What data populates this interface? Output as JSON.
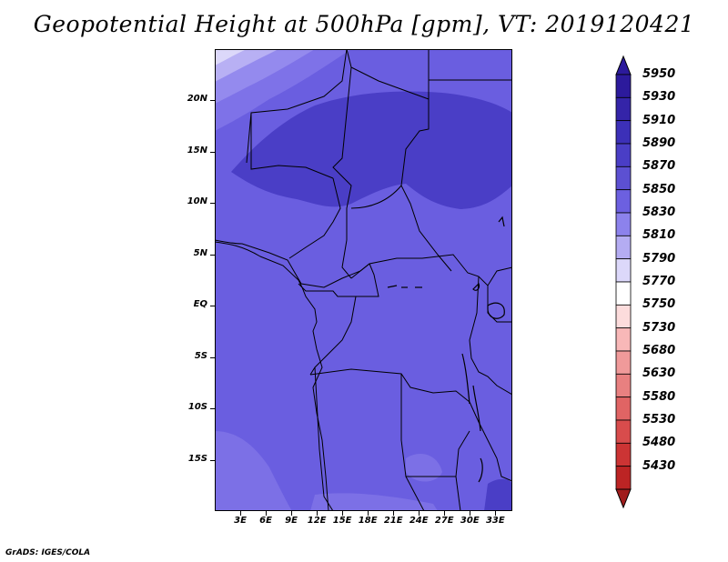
{
  "title": "Geopotential Height at 500hPa [gpm], VT: 2019120421",
  "credit": "GrADS: IGES/COLA",
  "map": {
    "lat_range": [
      -20,
      25
    ],
    "lon_range": [
      0,
      35
    ],
    "lat_ticks": [
      {
        "value": 20,
        "label": "20N"
      },
      {
        "value": 15,
        "label": "15N"
      },
      {
        "value": 10,
        "label": "10N"
      },
      {
        "value": 5,
        "label": "5N"
      },
      {
        "value": 0,
        "label": "EQ"
      },
      {
        "value": -5,
        "label": "5S"
      },
      {
        "value": -10,
        "label": "10S"
      },
      {
        "value": -15,
        "label": "15S"
      }
    ],
    "lon_ticks": [
      {
        "value": 3,
        "label": "3E"
      },
      {
        "value": 6,
        "label": "6E"
      },
      {
        "value": 9,
        "label": "9E"
      },
      {
        "value": 12,
        "label": "12E"
      },
      {
        "value": 15,
        "label": "15E"
      },
      {
        "value": 18,
        "label": "18E"
      },
      {
        "value": 21,
        "label": "21E"
      },
      {
        "value": 24,
        "label": "24E"
      },
      {
        "value": 27,
        "label": "27E"
      },
      {
        "value": 30,
        "label": "30E"
      },
      {
        "value": 33,
        "label": "33E"
      }
    ]
  },
  "colorbar": {
    "levels": [
      {
        "label": "5950",
        "color": "#2c1a9c"
      },
      {
        "label": "5930",
        "color": "#3424a8"
      },
      {
        "label": "5910",
        "color": "#3c30b8"
      },
      {
        "label": "5890",
        "color": "#4a3ec6"
      },
      {
        "label": "5870",
        "color": "#5c50d2"
      },
      {
        "label": "5850",
        "color": "#6c60e0"
      },
      {
        "label": "5830",
        "color": "#8c82ec"
      },
      {
        "label": "5810",
        "color": "#b4acf2"
      },
      {
        "label": "5790",
        "color": "#dcd8fa"
      },
      {
        "label": "5770",
        "color": "#ffffff"
      },
      {
        "label": "5750",
        "color": "#fcdcdc"
      },
      {
        "label": "5730",
        "color": "#f8b8b8"
      },
      {
        "label": "5680",
        "color": "#f09a9a"
      },
      {
        "label": "5630",
        "color": "#e88080"
      },
      {
        "label": "5580",
        "color": "#e06464"
      },
      {
        "label": "5530",
        "color": "#d84c4c"
      },
      {
        "label": "5480",
        "color": "#cc3434"
      },
      {
        "label": "5430",
        "color": "#bc2424"
      }
    ],
    "low_color": "#a01c1c"
  }
}
